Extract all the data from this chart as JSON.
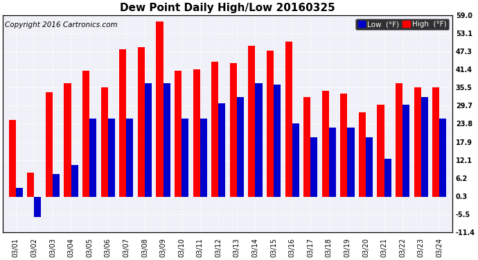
{
  "title": "Dew Point Daily High/Low 20160325",
  "copyright": "Copyright 2016 Cartronics.com",
  "legend_low": "Low  (°F)",
  "legend_high": "High  (°F)",
  "dates": [
    "03/01",
    "03/02",
    "03/03",
    "03/04",
    "03/05",
    "03/06",
    "03/07",
    "03/08",
    "03/09",
    "03/10",
    "03/11",
    "03/12",
    "03/13",
    "03/14",
    "03/15",
    "03/16",
    "03/17",
    "03/18",
    "03/19",
    "03/20",
    "03/21",
    "03/22",
    "03/23",
    "03/24"
  ],
  "high": [
    25.0,
    8.0,
    34.0,
    37.0,
    41.0,
    35.5,
    48.0,
    48.5,
    57.0,
    41.0,
    41.5,
    44.0,
    43.5,
    49.0,
    47.5,
    50.5,
    32.5,
    34.5,
    33.5,
    27.5,
    30.0,
    37.0,
    35.5,
    35.5
  ],
  "low": [
    3.0,
    -6.5,
    7.5,
    10.5,
    25.5,
    25.5,
    25.5,
    37.0,
    37.0,
    25.5,
    25.5,
    30.5,
    32.5,
    37.0,
    36.5,
    24.0,
    19.5,
    22.5,
    22.5,
    19.5,
    12.5,
    30.0,
    32.5,
    25.5
  ],
  "ylim": [
    -11.4,
    59.0
  ],
  "yticks": [
    -11.4,
    -5.5,
    0.3,
    6.2,
    12.1,
    17.9,
    23.8,
    29.7,
    35.5,
    41.4,
    47.3,
    53.1,
    59.0
  ],
  "bar_width": 0.38,
  "bg_color": "#ffffff",
  "plot_bg_color": "#f0f0f8",
  "grid_color": "#aaaaaa",
  "high_color": "#ff0000",
  "low_color": "#0000cc",
  "title_fontsize": 11,
  "copyright_fontsize": 7.5,
  "tick_fontsize": 7,
  "legend_fontsize": 7.5
}
